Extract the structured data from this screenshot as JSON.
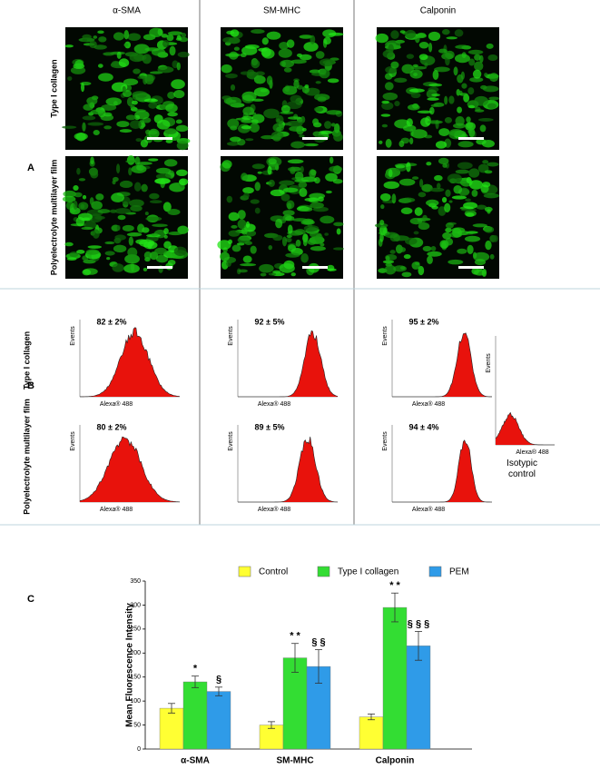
{
  "panel_a": {
    "label": "A",
    "columns": [
      "α-SMA",
      "SM-MHC",
      "Calponin"
    ],
    "rows": [
      "Type I collagen",
      "Polyelectrolyte multilayer film"
    ]
  },
  "panel_b": {
    "label": "B",
    "rows": [
      "Type I collagen",
      "Polyelectrolyte multilayer film"
    ],
    "percent_labels": [
      [
        "82 ± 2%",
        "92 ± 5%",
        "95 ± 2%"
      ],
      [
        "80 ± 2%",
        "89 ± 5%",
        "94 ± 4%"
      ]
    ],
    "x_label": "Alexa® 488",
    "y_label": "Events",
    "control_label": "Isotypic control"
  },
  "chart_data": {
    "type": "bar",
    "panel_label": "C",
    "ylabel": "Mean Fluorescence Intensity",
    "categories": [
      "α-SMA",
      "SM-MHC",
      "Calponin"
    ],
    "series": [
      {
        "name": "Control",
        "color": "#ffff33",
        "values": [
          85,
          50,
          67
        ],
        "errors": [
          10,
          7,
          6
        ],
        "annotations": [
          null,
          null,
          null
        ]
      },
      {
        "name": "Type I collagen",
        "color": "#33dd33",
        "values": [
          140,
          190,
          295
        ],
        "errors": [
          12,
          30,
          30
        ],
        "annotations": [
          "*",
          "* *",
          "* *"
        ]
      },
      {
        "name": "PEM",
        "color": "#2f9be8",
        "values": [
          120,
          172,
          215
        ],
        "errors": [
          9,
          35,
          30
        ],
        "annotations": [
          "§",
          "§ §",
          "§ § §"
        ]
      }
    ],
    "ylim": [
      0,
      350
    ],
    "yticks": [
      0,
      50,
      100,
      150,
      200,
      250,
      300,
      350
    ]
  }
}
